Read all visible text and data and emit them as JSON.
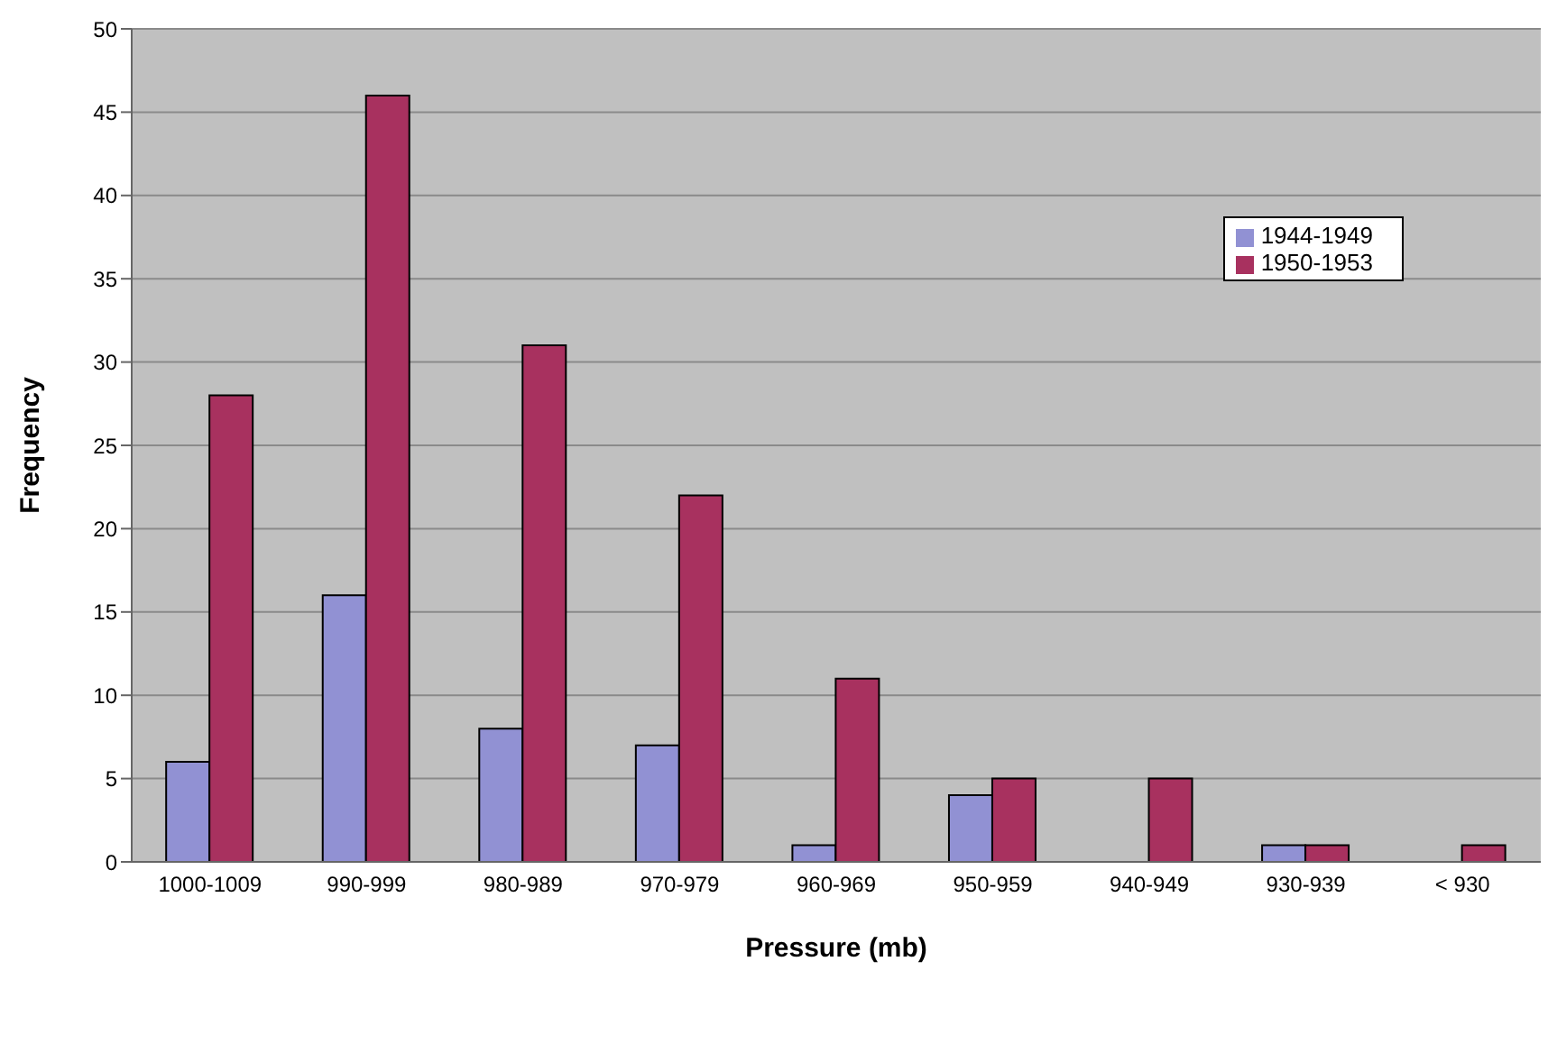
{
  "chart_data": {
    "type": "bar",
    "xlabel": "Pressure (mb)",
    "ylabel": "Frequency",
    "categories": [
      "1000-1009",
      "990-999",
      "980-989",
      "970-979",
      "960-969",
      "950-959",
      "940-949",
      "930-939",
      "< 930"
    ],
    "series": [
      {
        "name": "1944-1949",
        "color": "#9191d3",
        "values": [
          6,
          16,
          8,
          7,
          1,
          4,
          0,
          1,
          0
        ]
      },
      {
        "name": "1950-1953",
        "color": "#a8315f",
        "values": [
          28,
          46,
          31,
          22,
          11,
          5,
          5,
          1,
          1
        ]
      }
    ],
    "ylim": [
      0,
      50
    ],
    "yticks": [
      0,
      5,
      10,
      15,
      20,
      25,
      30,
      35,
      40,
      45,
      50
    ],
    "grid": "y",
    "legend": "top right"
  }
}
